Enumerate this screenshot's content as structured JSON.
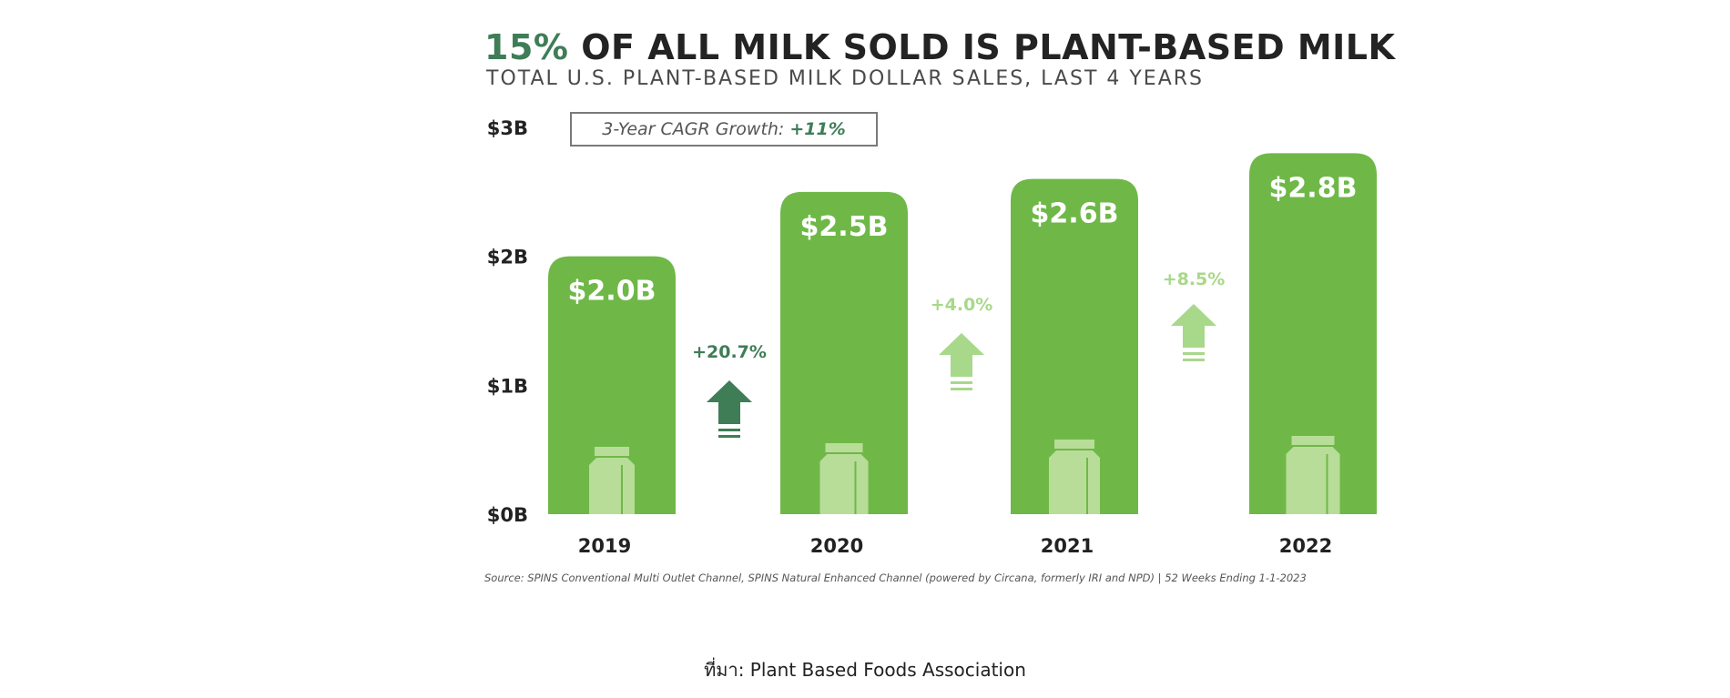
{
  "chart_data": {
    "type": "bar",
    "title_highlight": "15%",
    "title": "OF ALL MILK SOLD IS PLANT-BASED MILK",
    "subtitle": "TOTAL U.S. PLANT-BASED MILK DOLLAR SALES, LAST 4 YEARS",
    "categories": [
      "2019",
      "2020",
      "2021",
      "2022"
    ],
    "values": [
      2.0,
      2.5,
      2.6,
      2.8
    ],
    "value_labels": [
      "$2.0B",
      "$2.5B",
      "$2.6B",
      "$2.8B"
    ],
    "ylim": [
      0,
      3
    ],
    "y_ticks": [
      0,
      1,
      2,
      3
    ],
    "y_tick_labels": [
      "$0B",
      "$1B",
      "$2B",
      "$3B"
    ],
    "growth_labels": [
      "+20.7%",
      "+4.0%",
      "+8.5%"
    ],
    "cagr_label": "3-Year CAGR Growth:",
    "cagr_value": "+11%",
    "grid": false,
    "colors": {
      "bar": "#6fb848",
      "bar_icon": "#b8dd98",
      "arrow_dark": "#3f7d57",
      "arrow_light": "#a8d88a",
      "highlight": "#3f7d57"
    },
    "source": "Source: SPINS Conventional Multi Outlet Channel, SPINS Natural Enhanced Channel (powered by Circana, formerly IRI and NPD) | 52 Weeks Ending 1-1-2023"
  },
  "credit": "ที่มา: Plant Based Foods Association"
}
